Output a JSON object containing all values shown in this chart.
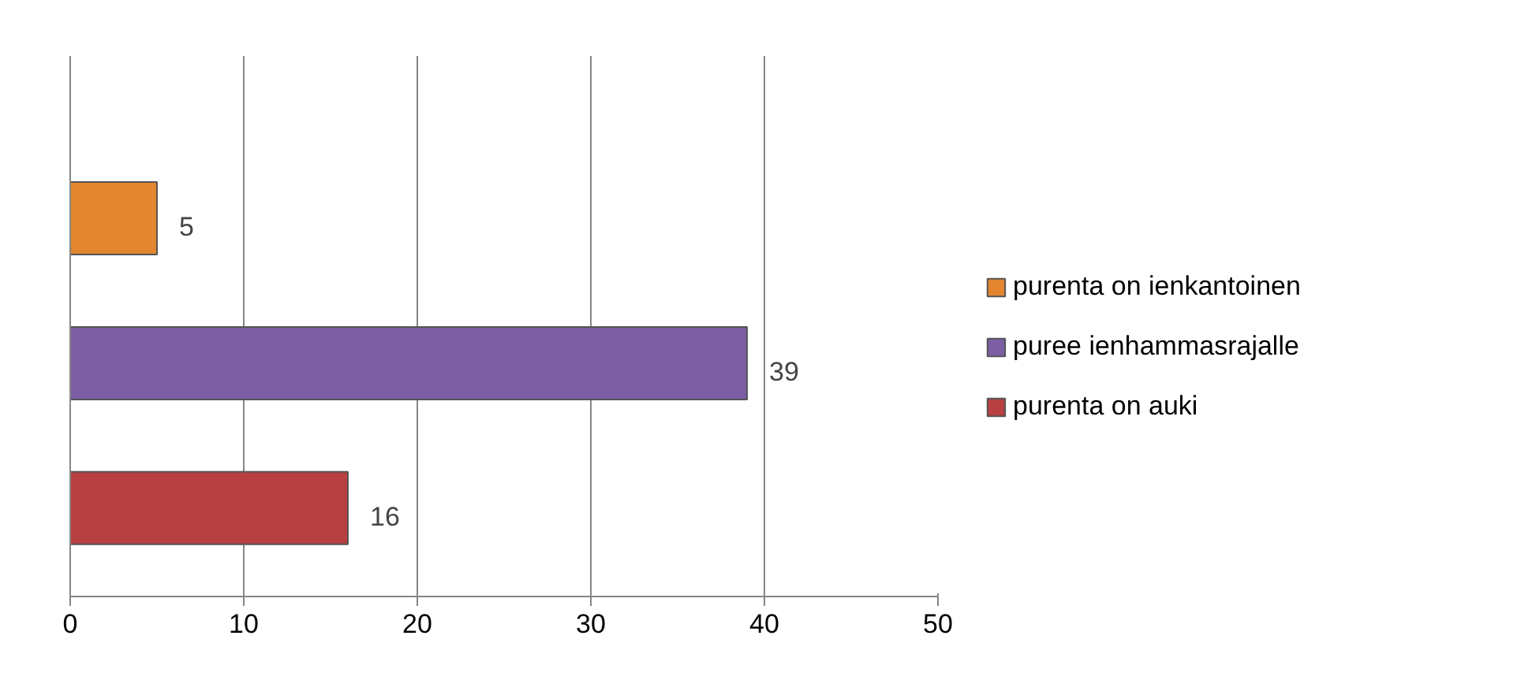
{
  "chart_data": {
    "type": "bar",
    "orientation": "horizontal",
    "categories": [
      null
    ],
    "series": [
      {
        "name": "purenta on ienkantoinen",
        "color": "#e3862f",
        "values": [
          5
        ]
      },
      {
        "name": "puree ienhammasrajalle",
        "color": "#7b5ea3",
        "values": [
          39
        ]
      },
      {
        "name": "purenta on auki",
        "color": "#b84040",
        "values": [
          16
        ]
      }
    ],
    "xlim": [
      0,
      50
    ],
    "xticks": [
      0,
      10,
      20,
      30,
      40,
      50
    ],
    "grid": "x",
    "legend": "right",
    "data_labels": true,
    "tick_labels": "x"
  }
}
